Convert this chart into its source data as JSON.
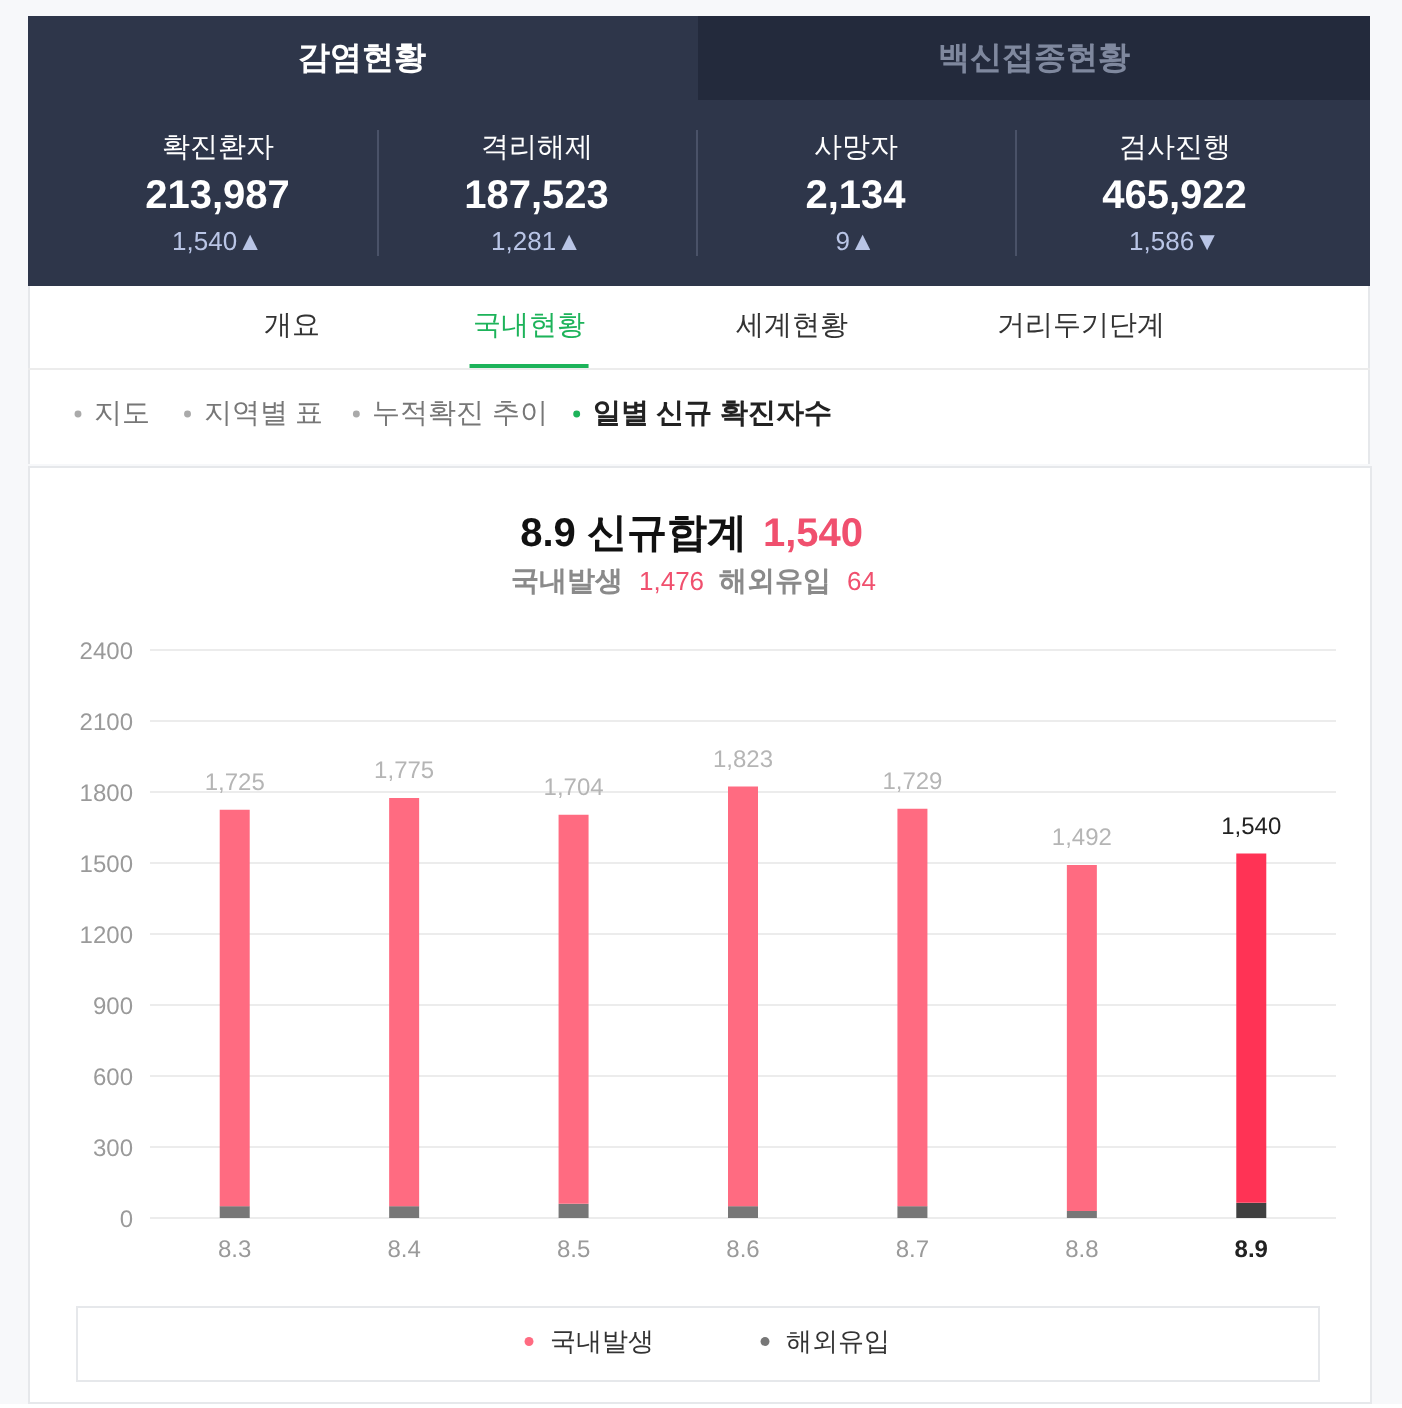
{
  "chart_data": [
    {
      "type": "other",
      "categories": [
        "확진환자",
        "격리해제",
        "사망자",
        "검사진행"
      ],
      "annotations": [
        "감염현황",
        "백신접종현황",
        "213,987",
        "1,540▲",
        "187,523",
        "1,281▲",
        "2,134",
        "9▲",
        "465,922",
        "1,586▼",
        "개요",
        "국내현황",
        "세계현황",
        "거리두기단계",
        "지도",
        "지역별 표",
        "누적확진 추이",
        "일별 신규 확진자수"
      ]
    },
    {
      "type": "bar",
      "title": "8.9 신규합계 1,540",
      "subtitle": "국내발생 1,476 해외유입 64",
      "categories": [
        "8.3",
        "8.4",
        "8.5",
        "8.6",
        "8.7",
        "8.8",
        "8.9"
      ],
      "series": [
        {
          "name": "해외유입",
          "color": "#777777",
          "colors": [
            "#777777",
            "#777777",
            "#777777",
            "#777777",
            "#777777",
            "#777777",
            "#404040"
          ],
          "values": [
            50,
            50,
            60,
            50,
            50,
            30,
            64
          ]
        },
        {
          "name": "국내발생",
          "color": "#ff6b81",
          "colors": [
            "#ff6b81",
            "#ff6b81",
            "#ff6b81",
            "#ff6b81",
            "#ff6b81",
            "#ff6b81",
            "#ff3355"
          ],
          "values": [
            1675,
            1725,
            1644,
            1773,
            1679,
            1462,
            1476
          ]
        }
      ],
      "stacked": true,
      "totals": [
        "1,725",
        "1,775",
        "1,704",
        "1,823",
        "1,729",
        "1,492",
        "1,540"
      ],
      "ylim": [
        0,
        2400
      ],
      "yticks": [
        0,
        300,
        600,
        900,
        1200,
        1500,
        1800,
        2100,
        2400
      ],
      "grid": "y",
      "legend": "bottom"
    }
  ]
}
